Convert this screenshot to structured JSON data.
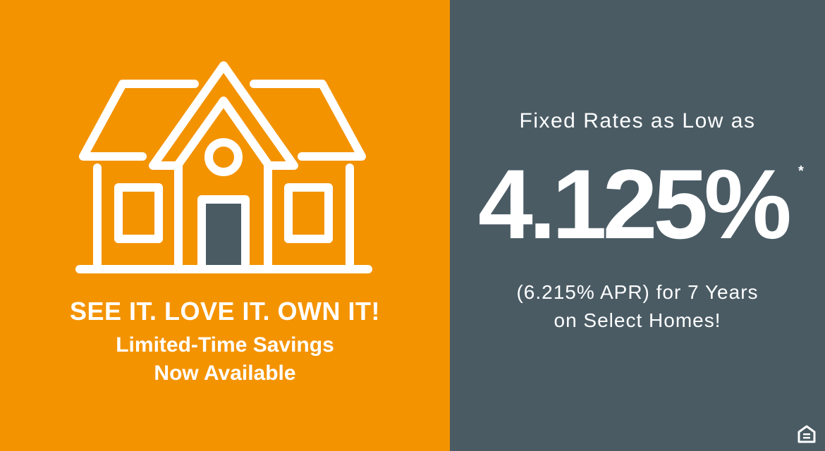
{
  "colors": {
    "orange": "#F49300",
    "slate": "#4A5B64",
    "text": "#FFFFFF"
  },
  "left_panel": {
    "icon": "house-outline-icon",
    "headline": "SEE IT. LOVE IT. OWN IT!",
    "subline_1": "Limited-Time Savings",
    "subline_2": "Now Available"
  },
  "right_panel": {
    "intro": "Fixed Rates as Low as",
    "rate": "4.125%",
    "asterisk": "*",
    "apr_line": "(6.215% APR) for 7 Years",
    "detail_line": "on Select Homes!",
    "footer_icon": "equal-housing-opportunity-icon"
  }
}
